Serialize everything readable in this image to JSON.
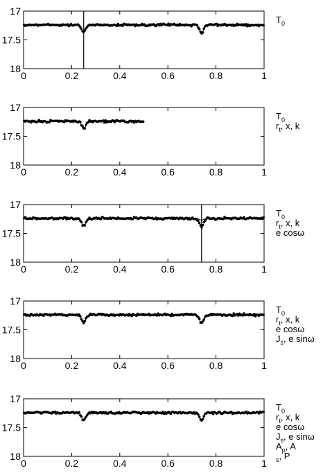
{
  "chart_data": [
    {
      "type": "scatter",
      "title": "",
      "xlabel": "",
      "ylabel": "",
      "xlim": [
        0,
        1
      ],
      "ylim": [
        18,
        17
      ],
      "y_axis_inverted": true,
      "x_ticks": [
        "0",
        "0.2",
        "0.4",
        "0.6",
        "0.8",
        "1"
      ],
      "y_ticks": [
        "17",
        "17.5",
        "18"
      ],
      "data_x_range": [
        0,
        1
      ],
      "primary_eclipse": {
        "center": 0.25,
        "depth_mag": 17.37
      },
      "secondary_eclipse": {
        "center": 0.74,
        "depth_mag": 17.38
      },
      "model_secondary_depth_mag": 17.38,
      "baseline_mag": 17.24,
      "vertical_marker_x": 0.25,
      "label_lines": [
        {
          "main": "T",
          "sub": "0",
          "tail": ""
        }
      ]
    },
    {
      "type": "scatter",
      "title": "",
      "xlabel": "",
      "ylabel": "",
      "xlim": [
        0,
        1
      ],
      "ylim": [
        18,
        17
      ],
      "y_axis_inverted": true,
      "x_ticks": [
        "0",
        "0.2",
        "0.4",
        "0.6",
        "0.8",
        "1"
      ],
      "y_ticks": [
        "17",
        "17.5",
        "18"
      ],
      "data_x_range": [
        0,
        0.5
      ],
      "primary_eclipse": {
        "center": 0.25,
        "depth_mag": 17.37
      },
      "secondary_eclipse": {
        "center": 0.74,
        "depth_mag": 17.38
      },
      "model_secondary_depth_mag": 17.38,
      "baseline_mag": 17.24,
      "vertical_marker_x": null,
      "label_lines": [
        {
          "main": "T",
          "sub": "0",
          "tail": ""
        },
        {
          "main": "r",
          "sub": "t",
          "tail": ", x, k"
        }
      ]
    },
    {
      "type": "scatter",
      "title": "",
      "xlabel": "",
      "ylabel": "",
      "xlim": [
        0,
        1
      ],
      "ylim": [
        18,
        17
      ],
      "y_axis_inverted": true,
      "x_ticks": [
        "0",
        "0.2",
        "0.4",
        "0.6",
        "0.8",
        "1"
      ],
      "y_ticks": [
        "17",
        "17.5",
        "18"
      ],
      "data_x_range": [
        0,
        1
      ],
      "primary_eclipse": {
        "center": 0.25,
        "depth_mag": 17.37
      },
      "secondary_eclipse": {
        "center": 0.74,
        "depth_mag": 17.38
      },
      "model_secondary_depth_mag": 17.27,
      "baseline_mag": 17.24,
      "vertical_marker_x": 0.74,
      "label_lines": [
        {
          "main": "T",
          "sub": "0",
          "tail": ""
        },
        {
          "main": "r",
          "sub": "t",
          "tail": ", x, k"
        },
        {
          "main": "e cosω",
          "sub": "",
          "tail": ""
        }
      ]
    },
    {
      "type": "scatter",
      "title": "",
      "xlabel": "",
      "ylabel": "",
      "xlim": [
        0,
        1
      ],
      "ylim": [
        18,
        17
      ],
      "y_axis_inverted": true,
      "x_ticks": [
        "0",
        "0.2",
        "0.4",
        "0.6",
        "0.8",
        "1"
      ],
      "y_ticks": [
        "17",
        "17.5",
        "18"
      ],
      "data_x_range": [
        0,
        1
      ],
      "primary_eclipse": {
        "center": 0.25,
        "depth_mag": 17.37
      },
      "secondary_eclipse": {
        "center": 0.74,
        "depth_mag": 17.38
      },
      "model_secondary_depth_mag": 17.38,
      "baseline_mag": 17.24,
      "vertical_marker_x": null,
      "label_lines": [
        {
          "main": "T",
          "sub": "0",
          "tail": ""
        },
        {
          "main": "r",
          "sub": "t",
          "tail": ", x, k"
        },
        {
          "main": "e cosω",
          "sub": "",
          "tail": ""
        },
        {
          "main": "J",
          "sub": "s",
          "tail": ", e sinω"
        }
      ]
    },
    {
      "type": "scatter",
      "title": "",
      "xlabel": "",
      "ylabel": "",
      "xlim": [
        0,
        1
      ],
      "ylim": [
        18,
        17
      ],
      "y_axis_inverted": true,
      "x_ticks": [
        "0",
        "0.2",
        "0.4",
        "0.6",
        "0.8",
        "1"
      ],
      "y_ticks": [
        "17",
        "17.5",
        "18"
      ],
      "data_x_range": [
        0,
        1
      ],
      "primary_eclipse": {
        "center": 0.25,
        "depth_mag": 17.37
      },
      "secondary_eclipse": {
        "center": 0.74,
        "depth_mag": 17.38
      },
      "model_secondary_depth_mag": 17.38,
      "baseline_mag": 17.24,
      "vertical_marker_x": null,
      "label_lines": [
        {
          "main": "T",
          "sub": "0",
          "tail": ""
        },
        {
          "main": "r",
          "sub": "t",
          "tail": ", x, k"
        },
        {
          "main": "e cosω",
          "sub": "",
          "tail": ""
        },
        {
          "main": "J",
          "sub": "s",
          "tail": ", e sinω"
        },
        {
          "main": "A",
          "sub": "p",
          "tail": ", A"
        },
        {
          "main": "",
          "sub": "s",
          "tail": ", P"
        }
      ]
    }
  ]
}
